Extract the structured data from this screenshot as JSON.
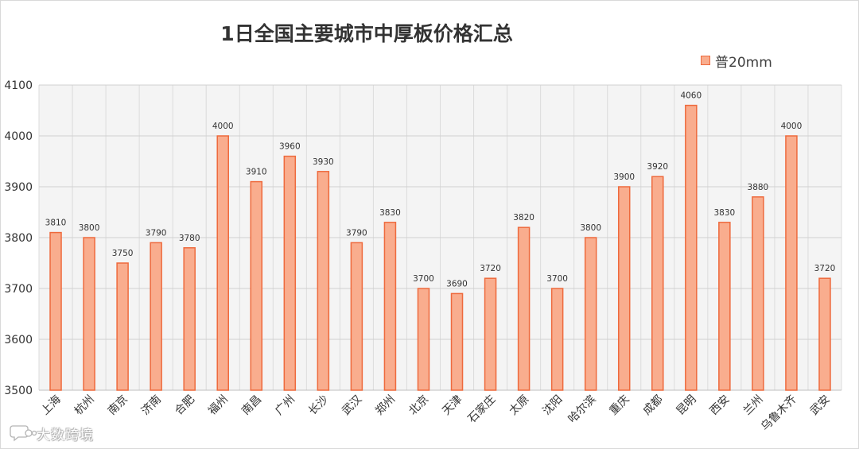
{
  "chart_data": {
    "type": "bar",
    "title": "1日全国主要城市中厚板价格汇总",
    "categories": [
      "上海",
      "杭州",
      "南京",
      "济南",
      "合肥",
      "福州",
      "南昌",
      "广州",
      "长沙",
      "武汉",
      "郑州",
      "北京",
      "天津",
      "石家庄",
      "太原",
      "沈阳",
      "哈尔滨",
      "重庆",
      "成都",
      "昆明",
      "西安",
      "兰州",
      "乌鲁木齐",
      "武安"
    ],
    "series": [
      {
        "name": "普20mm",
        "values": [
          3810,
          3800,
          3750,
          3790,
          3780,
          4000,
          3910,
          3960,
          3930,
          3790,
          3830,
          3700,
          3690,
          3720,
          3820,
          3700,
          3800,
          3900,
          3920,
          4060,
          3830,
          3880,
          4000,
          3720
        ]
      }
    ],
    "ylim": [
      3500,
      4100
    ],
    "yticks": [
      3500,
      3600,
      3700,
      3800,
      3900,
      4000,
      4100
    ],
    "grid": true,
    "legend_position": "top-right",
    "bar_fill": "#f9ad8e",
    "bar_stroke": "#ee6a3d"
  },
  "watermark": {
    "text": "大数跨境",
    "icon": "chat-bubble-logo-icon"
  }
}
